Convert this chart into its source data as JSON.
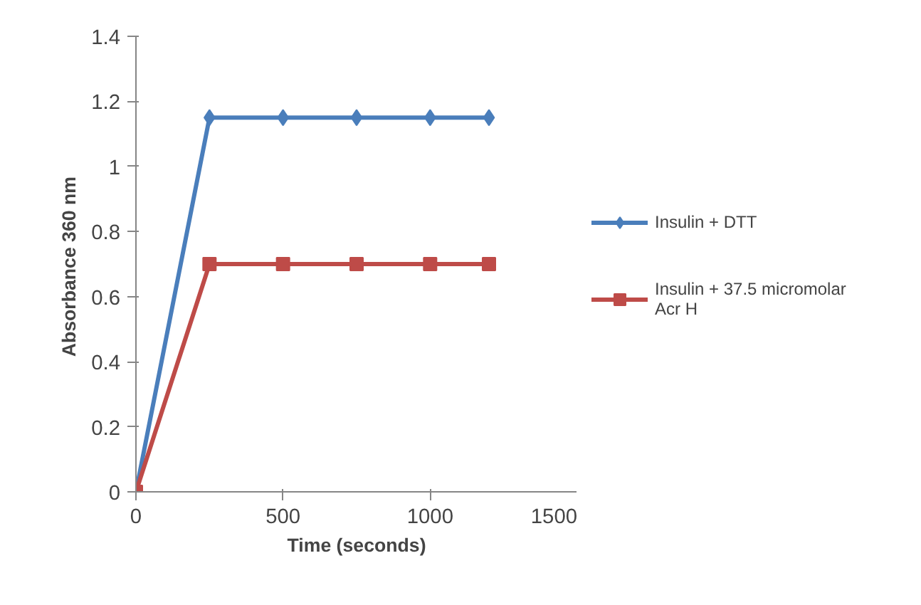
{
  "chart_data": {
    "type": "line",
    "xlabel": "Time (seconds)",
    "ylabel": "Absorbance  360 nm",
    "x": [
      0,
      250,
      500,
      750,
      1000,
      1200
    ],
    "series": [
      {
        "name": "Insulin + DTT",
        "color": "#4a7ebb",
        "marker": "diamond",
        "values": [
          0,
          1.15,
          1.15,
          1.15,
          1.15,
          1.15
        ]
      },
      {
        "name": "Insulin + 37.5 micromolar Acr H",
        "color": "#be4b48",
        "marker": "square",
        "values": [
          0,
          0.7,
          0.7,
          0.7,
          0.7,
          0.7
        ]
      }
    ],
    "xlim": [
      0,
      1500
    ],
    "xticks": [
      0,
      500,
      1000,
      1500
    ],
    "ylim": [
      0,
      1.4
    ],
    "yticks": [
      0,
      0.2,
      0.4,
      0.6,
      0.8,
      1,
      1.2,
      1.4
    ],
    "grid": false,
    "legend": "right"
  }
}
